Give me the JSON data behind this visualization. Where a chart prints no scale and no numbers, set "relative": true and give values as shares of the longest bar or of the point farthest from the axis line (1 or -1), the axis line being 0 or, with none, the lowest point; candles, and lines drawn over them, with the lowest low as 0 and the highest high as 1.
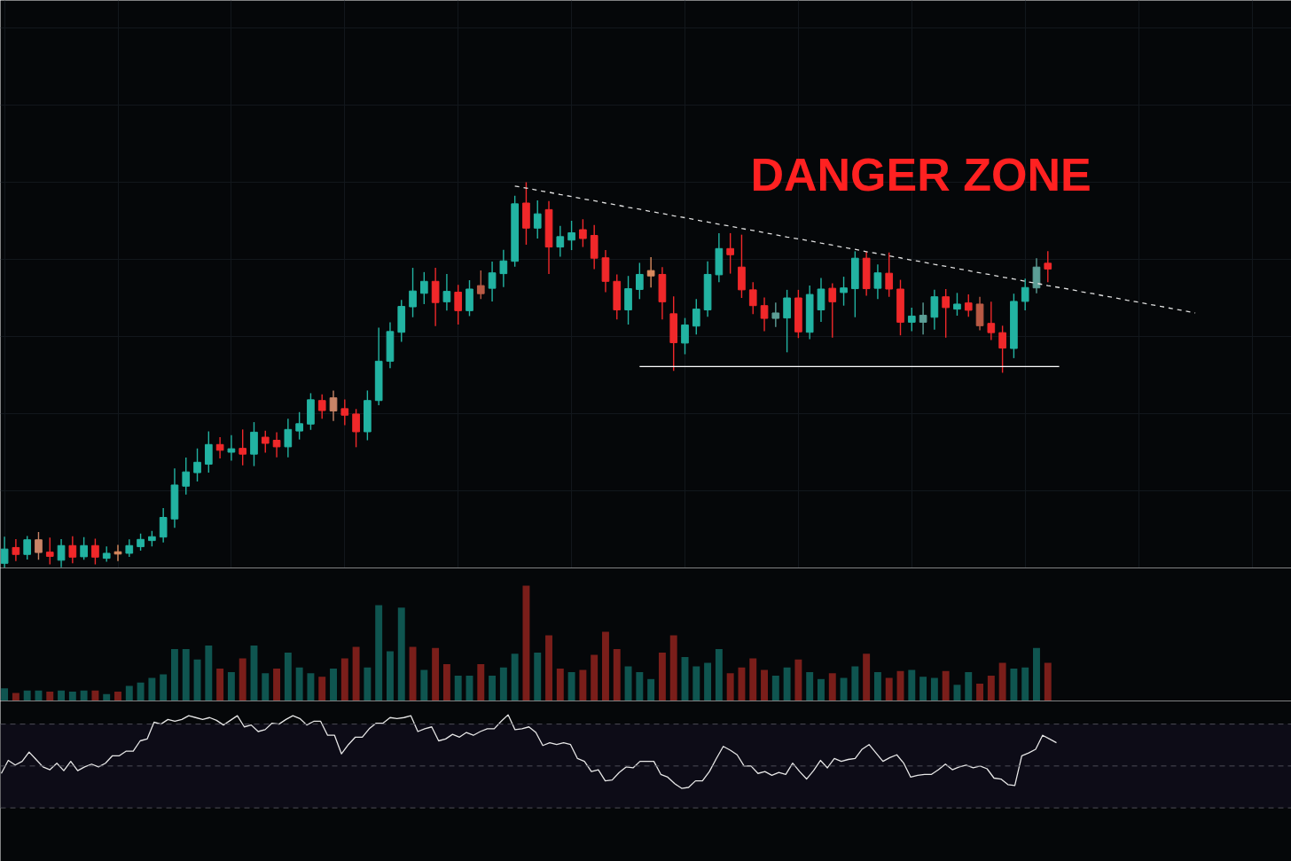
{
  "chart_data": [
    {
      "type": "candlestick",
      "title": "DANGER ZONE",
      "relative": true,
      "grid": true,
      "categories": [
        null,
        null,
        null,
        null,
        null,
        null,
        null,
        null,
        null,
        null,
        null,
        null,
        null,
        null,
        null,
        null,
        null,
        null,
        null,
        null,
        null,
        null,
        null,
        null,
        null,
        null,
        null,
        null,
        null,
        null,
        null,
        null,
        null,
        null,
        null,
        null,
        null,
        null,
        null,
        null,
        null,
        null,
        null,
        null,
        null,
        null,
        null,
        null,
        null,
        null,
        null,
        null,
        null,
        null,
        null,
        null,
        null,
        null,
        null,
        null,
        null,
        null,
        null,
        null,
        null,
        null,
        null,
        null,
        null,
        null,
        null,
        null,
        null,
        null,
        null,
        null,
        null,
        null,
        null,
        null,
        null,
        null,
        null,
        null,
        null,
        null,
        null,
        null,
        null,
        null,
        null,
        null,
        null,
        null,
        null,
        null,
        null,
        null,
        null,
        null,
        null,
        null,
        null,
        null,
        null,
        null
      ],
      "ohlc": [
        [
          0.012,
          0.081,
          0,
          0.049
        ],
        [
          0.053,
          0.075,
          0.018,
          0.035
        ],
        [
          0.035,
          0.083,
          0.022,
          0.073
        ],
        [
          0.073,
          0.093,
          0.021,
          0.04
        ],
        [
          0.041,
          0.079,
          0.009,
          0.03
        ],
        [
          0.02,
          0.075,
          0.002,
          0.058
        ],
        [
          0.058,
          0.082,
          0.012,
          0.028
        ],
        [
          0.029,
          0.08,
          0.021,
          0.058
        ],
        [
          0.058,
          0.076,
          0.009,
          0.028
        ],
        [
          0.025,
          0.056,
          0.016,
          0.038
        ],
        [
          0.042,
          0.06,
          0.018,
          0.036
        ],
        [
          0.038,
          0.074,
          0.029,
          0.058
        ],
        [
          0.055,
          0.089,
          0.045,
          0.074
        ],
        [
          0.071,
          0.096,
          0.056,
          0.081
        ],
        [
          0.08,
          0.155,
          0.066,
          0.131
        ],
        [
          0.127,
          0.258,
          0.104,
          0.215
        ],
        [
          0.212,
          0.286,
          0.19,
          0.249
        ],
        [
          0.247,
          0.31,
          0.224,
          0.274
        ],
        [
          0.269,
          0.354,
          0.247,
          0.32
        ],
        [
          0.32,
          0.339,
          0.284,
          0.305
        ],
        [
          0.3,
          0.344,
          0.278,
          0.309
        ],
        [
          0.31,
          0.359,
          0.266,
          0.295
        ],
        [
          0.295,
          0.378,
          0.264,
          0.352
        ],
        [
          0.339,
          0.356,
          0.299,
          0.323
        ],
        [
          0.331,
          0.352,
          0.287,
          0.314
        ],
        [
          0.314,
          0.387,
          0.287,
          0.359
        ],
        [
          0.355,
          0.404,
          0.333,
          0.374
        ],
        [
          0.373,
          0.453,
          0.358,
          0.436
        ],
        [
          0.434,
          0.45,
          0.387,
          0.408
        ],
        [
          0.441,
          0.46,
          0.381,
          0.407
        ],
        [
          0.413,
          0.437,
          0.37,
          0.396
        ],
        [
          0.399,
          0.412,
          0.313,
          0.353
        ],
        [
          0.353,
          0.46,
          0.331,
          0.434
        ],
        [
          0.434,
          0.623,
          0.422,
          0.536
        ],
        [
          0.536,
          0.637,
          0.518,
          0.613
        ],
        [
          0.611,
          0.695,
          0.586,
          0.678
        ],
        [
          0.677,
          0.778,
          0.65,
          0.718
        ],
        [
          0.712,
          0.767,
          0.684,
          0.743
        ],
        [
          0.743,
          0.778,
          0.627,
          0.688
        ],
        [
          0.69,
          0.762,
          0.667,
          0.717
        ],
        [
          0.715,
          0.734,
          0.631,
          0.667
        ],
        [
          0.667,
          0.746,
          0.653,
          0.723
        ],
        [
          0.732,
          0.771,
          0.697,
          0.711
        ],
        [
          0.725,
          0.794,
          0.691,
          0.765
        ],
        [
          0.763,
          0.825,
          0.728,
          0.796
        ],
        [
          0.795,
          0.965,
          0.781,
          0.944
        ],
        [
          0.946,
          1,
          0.838,
          0.881
        ],
        [
          0.881,
          0.953,
          0.854,
          0.918
        ],
        [
          0.929,
          0.951,
          0.762,
          0.832
        ],
        [
          0.832,
          0.887,
          0.807,
          0.859
        ],
        [
          0.85,
          0.9,
          0.824,
          0.869
        ],
        [
          0.877,
          0.904,
          0.832,
          0.854
        ],
        [
          0.862,
          0.889,
          0.775,
          0.803
        ],
        [
          0.804,
          0.824,
          0.715,
          0.743
        ],
        [
          0.743,
          0.761,
          0.644,
          0.669
        ],
        [
          0.669,
          0.757,
          0.631,
          0.724
        ],
        [
          0.722,
          0.791,
          0.697,
          0.761
        ],
        [
          0.771,
          0.806,
          0.727,
          0.757
        ],
        [
          0.761,
          0.78,
          0.644,
          0.69
        ],
        [
          0.659,
          0.704,
          0.511,
          0.584
        ],
        [
          0.583,
          0.648,
          0.554,
          0.63
        ],
        [
          0.627,
          0.697,
          0.605,
          0.671
        ],
        [
          0.669,
          0.795,
          0.651,
          0.761
        ],
        [
          0.76,
          0.868,
          0.741,
          0.828
        ],
        [
          0.828,
          0.868,
          0.763,
          0.812
        ],
        [
          0.78,
          0.864,
          0.7,
          0.721
        ],
        [
          0.721,
          0.741,
          0.658,
          0.68
        ],
        [
          0.68,
          0.701,
          0.614,
          0.647
        ],
        [
          0.647,
          0.688,
          0.625,
          0.661
        ],
        [
          0.648,
          0.721,
          0.559,
          0.7
        ],
        [
          0.7,
          0.721,
          0.596,
          0.612
        ],
        [
          0.611,
          0.732,
          0.593,
          0.709
        ],
        [
          0.669,
          0.752,
          0.638,
          0.723
        ],
        [
          0.725,
          0.738,
          0.597,
          0.69
        ],
        [
          0.714,
          0.755,
          0.68,
          0.726
        ],
        [
          0.724,
          0.821,
          0.65,
          0.803
        ],
        [
          0.803,
          0.821,
          0.706,
          0.724
        ],
        [
          0.725,
          0.787,
          0.697,
          0.765
        ],
        [
          0.764,
          0.818,
          0.703,
          0.723
        ],
        [
          0.723,
          0.747,
          0.603,
          0.637
        ],
        [
          0.637,
          0.675,
          0.614,
          0.653
        ],
        [
          0.637,
          0.688,
          0.605,
          0.655
        ],
        [
          0.65,
          0.721,
          0.618,
          0.703
        ],
        [
          0.703,
          0.723,
          0.597,
          0.675
        ],
        [
          0.671,
          0.713,
          0.654,
          0.684
        ],
        [
          0.687,
          0.709,
          0.651,
          0.668
        ],
        [
          0.684,
          0.703,
          0.616,
          0.628
        ],
        [
          0.634,
          0.69,
          0.591,
          0.61
        ],
        [
          0.61,
          0.628,
          0.506,
          0.57
        ],
        [
          0.569,
          0.711,
          0.544,
          0.691
        ],
        [
          0.691,
          0.75,
          0.668,
          0.727
        ],
        [
          0.726,
          0.803,
          0.712,
          0.78
        ],
        [
          0.79,
          0.821,
          0.741,
          0.775
        ],
        null,
        null,
        null,
        null,
        null,
        null,
        null,
        null,
        null,
        null,
        null,
        null,
        null
      ],
      "colors": [
        "#22b3a2",
        "#f0282a",
        "#22b3a2",
        "#c98467",
        "#f0282a",
        "#22b3a2",
        "#f0282a",
        "#22b3a2",
        "#f0282a",
        "#22b3a2",
        "#d98a5f",
        "#22b3a2",
        "#22b3a2",
        "#22b3a2",
        "#22b3a2",
        "#22b3a2",
        "#22b3a2",
        "#22b3a2",
        "#22b3a2",
        "#f0282a",
        "#22b3a2",
        "#f0282a",
        "#22b3a2",
        "#f0282a",
        "#f0282a",
        "#22b3a2",
        "#22b3a2",
        "#22b3a2",
        "#f0282a",
        "#c98467",
        "#f0282a",
        "#f0282a",
        "#22b3a2",
        "#22b3a2",
        "#22b3a2",
        "#22b3a2",
        "#22b3a2",
        "#22b3a2",
        "#f0282a",
        "#22b3a2",
        "#f0282a",
        "#22b3a2",
        "#b95a45",
        "#22b3a2",
        "#22b3a2",
        "#22b3a2",
        "#f0282a",
        "#22b3a2",
        "#f0282a",
        "#22b3a2",
        "#22b3a2",
        "#f0282a",
        "#f0282a",
        "#f0282a",
        "#f0282a",
        "#22b3a2",
        "#22b3a2",
        "#d98a5f",
        "#f0282a",
        "#f0282a",
        "#22b3a2",
        "#22b3a2",
        "#22b3a2",
        "#22b3a2",
        "#f0282a",
        "#f0282a",
        "#f0282a",
        "#f0282a",
        "#5c9e96",
        "#22b3a2",
        "#f0282a",
        "#22b3a2",
        "#22b3a2",
        "#f0282a",
        "#22b3a2",
        "#22b3a2",
        "#f0282a",
        "#22b3a2",
        "#f0282a",
        "#f0282a",
        "#22b3a2",
        "#5c9e96",
        "#22b3a2",
        "#f0282a",
        "#22b3a2",
        "#f0282a",
        "#b95a45",
        "#f0282a",
        "#f0282a",
        "#22b3a2",
        "#22b3a2",
        "#5c9e96",
        "#f0282a",
        null,
        null,
        null,
        null,
        null,
        null,
        null,
        null,
        null,
        null,
        null,
        null,
        null
      ],
      "series": [
        {
          "type": "line",
          "color": "#e0e0e0",
          "line_style": "dashed",
          "values": [
            null,
            null,
            null,
            null,
            null,
            null,
            null,
            null,
            null,
            null,
            null,
            null,
            null,
            null,
            null,
            null,
            null,
            null,
            null,
            null,
            null,
            null,
            null,
            null,
            null,
            null,
            null,
            null,
            null,
            null,
            null,
            null,
            null,
            null,
            null,
            null,
            null,
            null,
            null,
            null,
            null,
            null,
            null,
            null,
            null,
            0.99,
            0.985,
            0.979,
            0.974,
            0.968,
            0.963,
            0.957,
            0.952,
            0.946,
            0.941,
            0.935,
            0.93,
            0.924,
            0.919,
            0.913,
            0.908,
            0.902,
            0.897,
            0.891,
            0.886,
            0.88,
            0.875,
            0.869,
            0.864,
            0.858,
            0.853,
            0.848,
            0.842,
            0.837,
            0.831,
            0.826,
            0.82,
            0.815,
            0.809,
            0.804,
            0.798,
            0.793,
            0.787,
            0.782,
            0.776,
            0.771,
            0.765,
            0.76,
            0.754,
            0.749,
            0.743,
            0.738,
            0.732,
            0.727,
            0.722,
            0.716,
            0.711,
            0.705,
            0.7,
            0.694,
            0.689,
            0.683,
            0.678,
            0.672,
            0.667,
            0.661
          ]
        },
        {
          "type": "line",
          "color": "#ffffff",
          "line_style": "solid",
          "values": [
            null,
            null,
            null,
            null,
            null,
            null,
            null,
            null,
            null,
            null,
            null,
            null,
            null,
            null,
            null,
            null,
            null,
            null,
            null,
            null,
            null,
            null,
            null,
            null,
            null,
            null,
            null,
            null,
            null,
            null,
            null,
            null,
            null,
            null,
            null,
            null,
            null,
            null,
            null,
            null,
            null,
            null,
            null,
            null,
            null,
            null,
            null,
            null,
            null,
            null,
            null,
            null,
            null,
            null,
            null,
            null,
            0.522,
            0.522,
            0.522,
            0.522,
            0.522,
            0.522,
            0.522,
            0.522,
            0.522,
            0.522,
            0.522,
            0.522,
            0.522,
            0.522,
            0.522,
            0.522,
            0.522,
            0.522,
            0.522,
            0.522,
            0.522,
            0.522,
            0.522,
            0.522,
            0.522,
            0.522,
            0.522,
            0.522,
            0.522,
            0.522,
            0.522,
            0.522,
            0.522,
            0.522,
            0.522,
            0.522,
            0.522,
            0.522,
            null,
            null,
            null,
            null,
            null,
            null,
            null,
            null,
            null,
            null,
            null,
            null
          ]
        }
      ]
    },
    {
      "type": "bar",
      "relative": true,
      "categories": [
        null,
        null,
        null,
        null,
        null,
        null,
        null,
        null,
        null,
        null,
        null,
        null,
        null,
        null,
        null,
        null,
        null,
        null,
        null,
        null,
        null,
        null,
        null,
        null,
        null,
        null,
        null,
        null,
        null,
        null,
        null,
        null,
        null,
        null,
        null,
        null,
        null,
        null,
        null,
        null,
        null,
        null,
        null,
        null,
        null,
        null,
        null,
        null,
        null,
        null,
        null,
        null,
        null,
        null,
        null,
        null,
        null,
        null,
        null,
        null,
        null,
        null,
        null,
        null,
        null,
        null,
        null,
        null,
        null,
        null,
        null,
        null,
        null,
        null,
        null,
        null,
        null,
        null,
        null,
        null,
        null,
        null,
        null,
        null,
        null,
        null,
        null,
        null,
        null,
        null,
        null,
        null,
        null
      ],
      "values": [
        0.11,
        0.07,
        0.09,
        0.09,
        0.08,
        0.09,
        0.08,
        0.09,
        0.09,
        0.06,
        0.08,
        0.13,
        0.16,
        0.2,
        0.23,
        0.45,
        0.45,
        0.36,
        0.48,
        0.28,
        0.25,
        0.37,
        0.48,
        0.24,
        0.28,
        0.42,
        0.29,
        0.24,
        0.21,
        0.28,
        0.37,
        0.47,
        0.29,
        0.83,
        0.43,
        0.81,
        0.47,
        0.27,
        0.46,
        0.32,
        0.22,
        0.22,
        0.32,
        0.22,
        0.29,
        0.41,
        1,
        0.42,
        0.57,
        0.28,
        0.25,
        0.27,
        0.4,
        0.6,
        0.45,
        0.3,
        0.25,
        0.19,
        0.42,
        0.57,
        0.38,
        0.3,
        0.33,
        0.45,
        0.24,
        0.29,
        0.37,
        0.27,
        0.22,
        0.29,
        0.36,
        0.25,
        0.19,
        0.24,
        0.2,
        0.3,
        0.41,
        0.25,
        0.2,
        0.26,
        0.27,
        0.21,
        0.2,
        0.26,
        0.14,
        0.25,
        0.15,
        0.22,
        0.33,
        0.28,
        0.29,
        0.46,
        0.33
      ],
      "colors": [
        "#0f5550",
        "#7a1e1a",
        "#0f5550",
        "#0f5550",
        "#7a1e1a",
        "#0f5550",
        "#0f5550",
        "#0f5550",
        "#7a1e1a",
        "#0f5550",
        "#7a1e1a",
        "#0f5550",
        "#0f5550",
        "#0f5550",
        "#0f5550",
        "#0f5550",
        "#0f5550",
        "#0f5550",
        "#0f5550",
        "#7a1e1a",
        "#0f5550",
        "#7a1e1a",
        "#0f5550",
        "#0f5550",
        "#7a1e1a",
        "#0f5550",
        "#0f5550",
        "#0f5550",
        "#7a1e1a",
        "#0f5550",
        "#7a1e1a",
        "#7a1e1a",
        "#0f5550",
        "#0f5550",
        "#0f5550",
        "#0f5550",
        "#7a1e1a",
        "#0f5550",
        "#7a1e1a",
        "#7a1e1a",
        "#0f5550",
        "#0f5550",
        "#7a1e1a",
        "#0f5550",
        "#0f5550",
        "#0f5550",
        "#7a1e1a",
        "#0f5550",
        "#7a1e1a",
        "#7a1e1a",
        "#0f5550",
        "#7a1e1a",
        "#7a1e1a",
        "#7a1e1a",
        "#7a1e1a",
        "#0f5550",
        "#0f5550",
        "#0f5550",
        "#7a1e1a",
        "#7a1e1a",
        "#0f5550",
        "#0f5550",
        "#0f5550",
        "#0f5550",
        "#7a1e1a",
        "#7a1e1a",
        "#7a1e1a",
        "#7a1e1a",
        "#0f5550",
        "#0f5550",
        "#7a1e1a",
        "#0f5550",
        "#0f5550",
        "#7a1e1a",
        "#0f5550",
        "#0f5550",
        "#7a1e1a",
        "#0f5550",
        "#7a1e1a",
        "#7a1e1a",
        "#0f5550",
        "#0f5550",
        "#0f5550",
        "#7a1e1a",
        "#0f5550",
        "#0f5550",
        "#7a1e1a",
        "#7a1e1a",
        "#7a1e1a",
        "#0f5550",
        "#0f5550",
        "#0f5550",
        "#7a1e1a"
      ]
    },
    {
      "type": "line",
      "relative": true,
      "categories": [
        null,
        null,
        null,
        null,
        null,
        null,
        null,
        null,
        null,
        null,
        null,
        null,
        null,
        null,
        null,
        null,
        null,
        null,
        null,
        null,
        null,
        null,
        null,
        null,
        null,
        null,
        null,
        null,
        null,
        null,
        null,
        null,
        null,
        null,
        null,
        null,
        null,
        null,
        null,
        null,
        null,
        null,
        null,
        null,
        null,
        null,
        null,
        null,
        null,
        null,
        null,
        null,
        null,
        null,
        null,
        null,
        null,
        null,
        null,
        null,
        null,
        null,
        null,
        null,
        null,
        null,
        null,
        null,
        null,
        null,
        null,
        null,
        null,
        null,
        null,
        null,
        null,
        null,
        null,
        null,
        null,
        null,
        null,
        null,
        null,
        null,
        null,
        null,
        null,
        null,
        null,
        null,
        null,
        null,
        null,
        null,
        null,
        null,
        null,
        null,
        null,
        null,
        null,
        null,
        null,
        null,
        null,
        null,
        null,
        null,
        null,
        null,
        null,
        null,
        null,
        null,
        null,
        null,
        null,
        null,
        null,
        null,
        null,
        null,
        null,
        null,
        null,
        null,
        null,
        null,
        null,
        null,
        null,
        null,
        null,
        null,
        null,
        null,
        null,
        null,
        null,
        null,
        null,
        null,
        null,
        null,
        null,
        null,
        null,
        null,
        null,
        null,
        null
      ],
      "values": [
        0.37,
        0.51,
        0.46,
        0.5,
        0.6,
        0.52,
        0.44,
        0.41,
        0.48,
        0.4,
        0.5,
        0.4,
        0.44,
        0.47,
        0.44,
        0.48,
        0.56,
        0.56,
        0.61,
        0.61,
        0.72,
        0.74,
        0.92,
        0.9,
        0.95,
        0.93,
        0.95,
        0.99,
        0.97,
        0.95,
        0.97,
        0.94,
        0.89,
        0.94,
        0.99,
        0.87,
        0.89,
        0.82,
        0.84,
        0.91,
        0.9,
        0.95,
        0.99,
        0.96,
        0.89,
        0.93,
        0.93,
        0.78,
        0.78,
        0.58,
        0.68,
        0.76,
        0.76,
        0.85,
        0.91,
        0.91,
        0.97,
        0.96,
        0.97,
        0.99,
        0.82,
        0.85,
        0.87,
        0.72,
        0.74,
        0.79,
        0.76,
        0.81,
        0.78,
        0.82,
        0.85,
        0.85,
        0.93,
        1,
        0.84,
        0.85,
        0.87,
        0.81,
        0.67,
        0.7,
        0.68,
        0.7,
        0.68,
        0.53,
        0.5,
        0.39,
        0.41,
        0.29,
        0.3,
        0.38,
        0.44,
        0.43,
        0.5,
        0.5,
        0.5,
        0.36,
        0.33,
        0.26,
        0.21,
        0.22,
        0.29,
        0.29,
        0.39,
        0.53,
        0.66,
        0.62,
        0.57,
        0.45,
        0.45,
        0.37,
        0.39,
        0.35,
        0.38,
        0.36,
        0.48,
        0.39,
        0.31,
        0.4,
        0.51,
        0.43,
        0.53,
        0.5,
        0.52,
        0.53,
        0.63,
        0.68,
        0.59,
        0.5,
        0.54,
        0.57,
        0.48,
        0.33,
        0.35,
        0.36,
        0.36,
        0.41,
        0.47,
        0.41,
        0.44,
        0.46,
        0.43,
        0.45,
        0.42,
        0.32,
        0.31,
        0.25,
        0.24,
        0.56,
        0.59,
        0.63,
        0.78,
        0.74,
        0.7
      ],
      "color": "#e6e6e6",
      "ref_lines": [
        {
          "axis": "y",
          "value": 0.9,
          "color": "#4d4d57",
          "line_style": "dashed"
        },
        {
          "axis": "y",
          "value": 0.45,
          "color": "#4d4d57",
          "line_style": "dashed"
        },
        {
          "axis": "y",
          "value": 0,
          "color": "#4d4d57",
          "line_style": "dashed"
        }
      ],
      "bands": [
        {
          "axis": "y",
          "from": 0,
          "to": 0.9,
          "color": "#0d0c17"
        }
      ]
    }
  ]
}
